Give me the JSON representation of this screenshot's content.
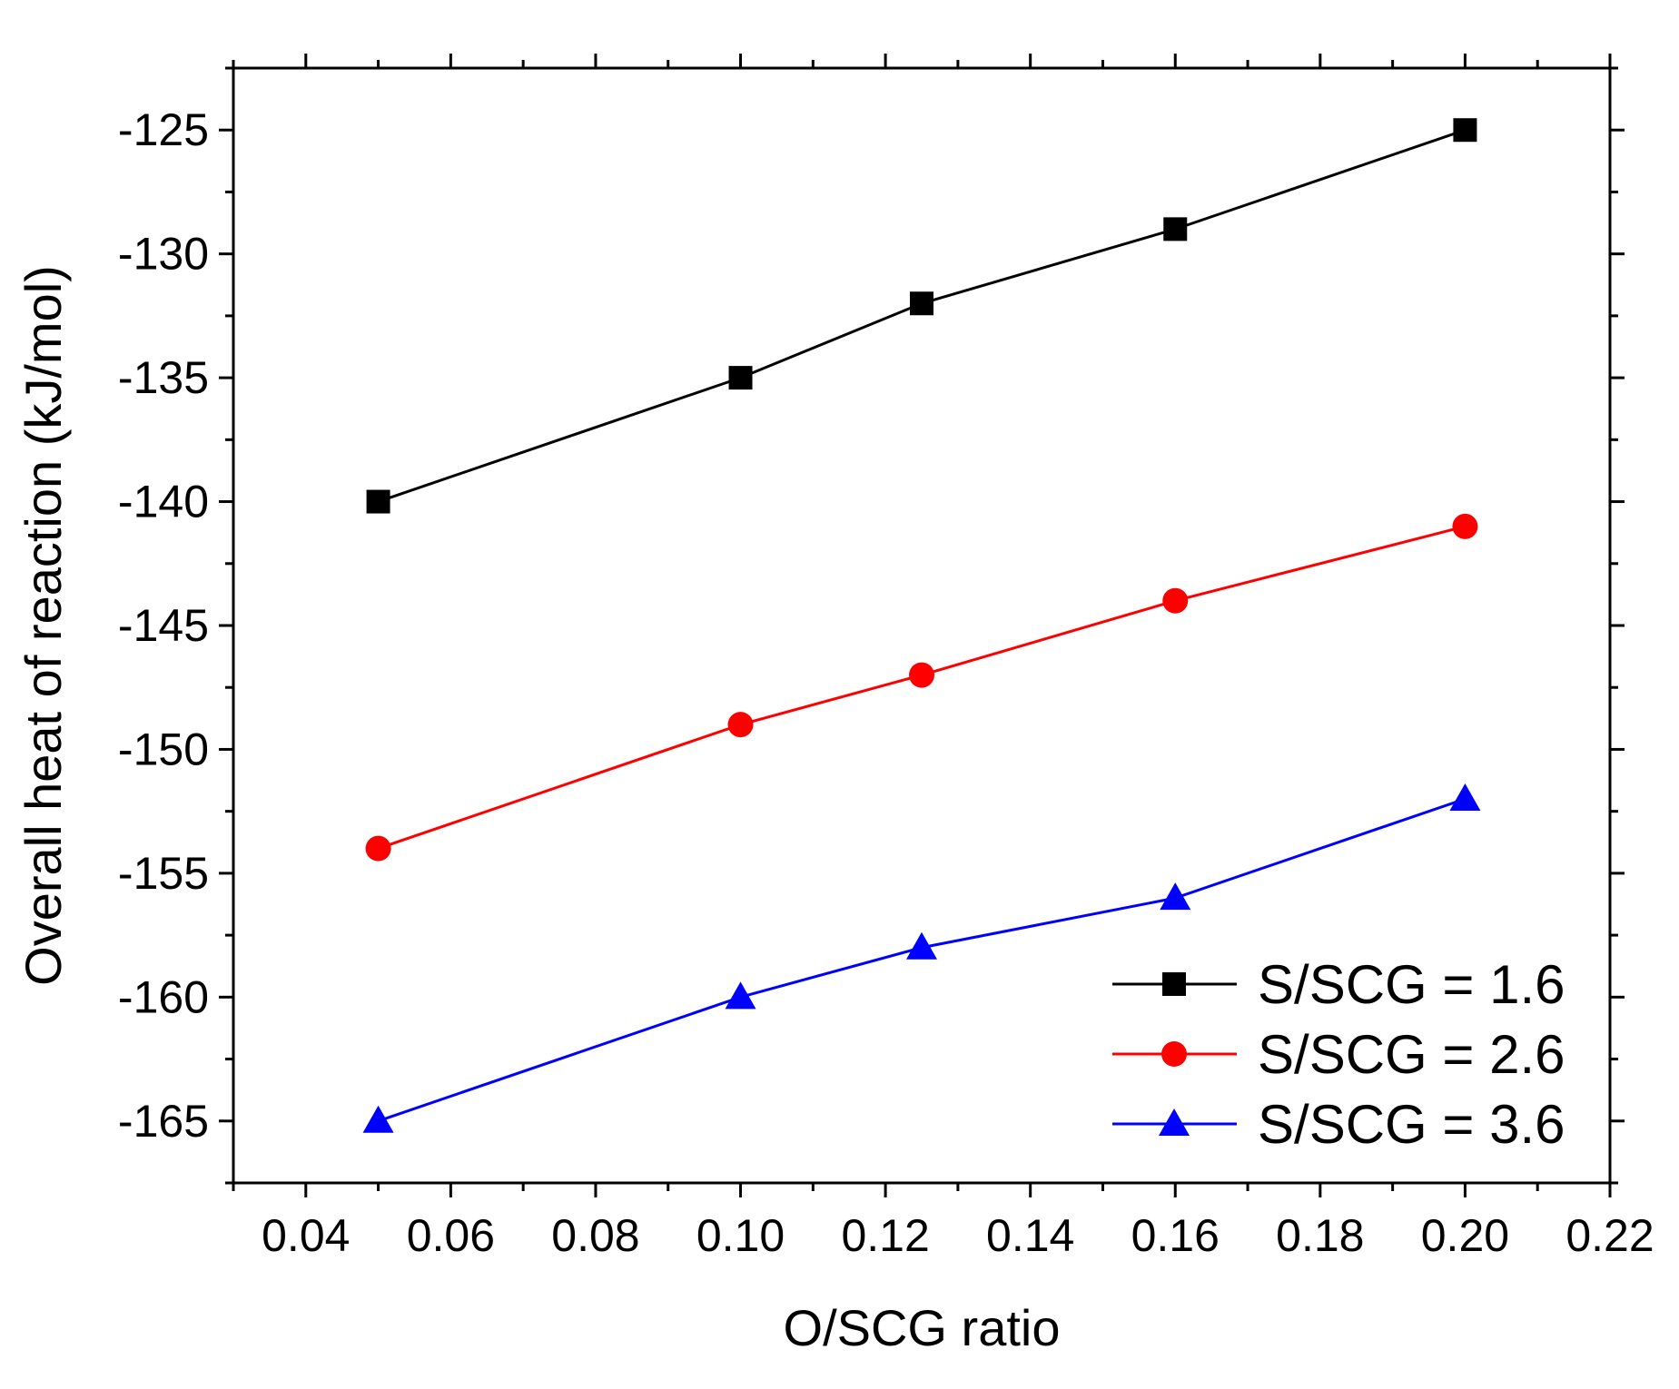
{
  "chart_data": {
    "type": "line",
    "title": "",
    "xlabel": "O/SCG ratio",
    "ylabel": "Overall heat of reaction (kJ/mol)",
    "xlim": [
      0.03,
      0.22
    ],
    "ylim": [
      -167.5,
      -122.5
    ],
    "x_ticks": [
      0.04,
      0.06,
      0.08,
      0.1,
      0.12,
      0.14,
      0.16,
      0.18,
      0.2,
      0.22
    ],
    "x_tick_labels": [
      "0.04",
      "0.06",
      "0.08",
      "0.10",
      "0.12",
      "0.14",
      "0.16",
      "0.18",
      "0.20",
      "0.22"
    ],
    "y_ticks": [
      -125,
      -130,
      -135,
      -140,
      -145,
      -150,
      -155,
      -160,
      -165
    ],
    "y_tick_labels": [
      "-125",
      "-130",
      "-135",
      "-140",
      "-145",
      "-150",
      "-155",
      "-160",
      "-165"
    ],
    "x": [
      0.05,
      0.1,
      0.125,
      0.16,
      0.2
    ],
    "series": [
      {
        "name": "S/SCG = 1.6",
        "values": [
          -140,
          -135,
          -132,
          -129,
          -125
        ],
        "color": "#000000",
        "marker": "square"
      },
      {
        "name": "S/SCG = 2.6",
        "values": [
          -154,
          -149,
          -147,
          -144,
          -141
        ],
        "color": "#ff0000",
        "marker": "circle"
      },
      {
        "name": "S/SCG = 3.6",
        "values": [
          -165,
          -160,
          -158,
          -156,
          -152
        ],
        "color": "#0000ff",
        "marker": "triangle"
      }
    ],
    "legend_position": "bottom-right",
    "grid": false
  }
}
